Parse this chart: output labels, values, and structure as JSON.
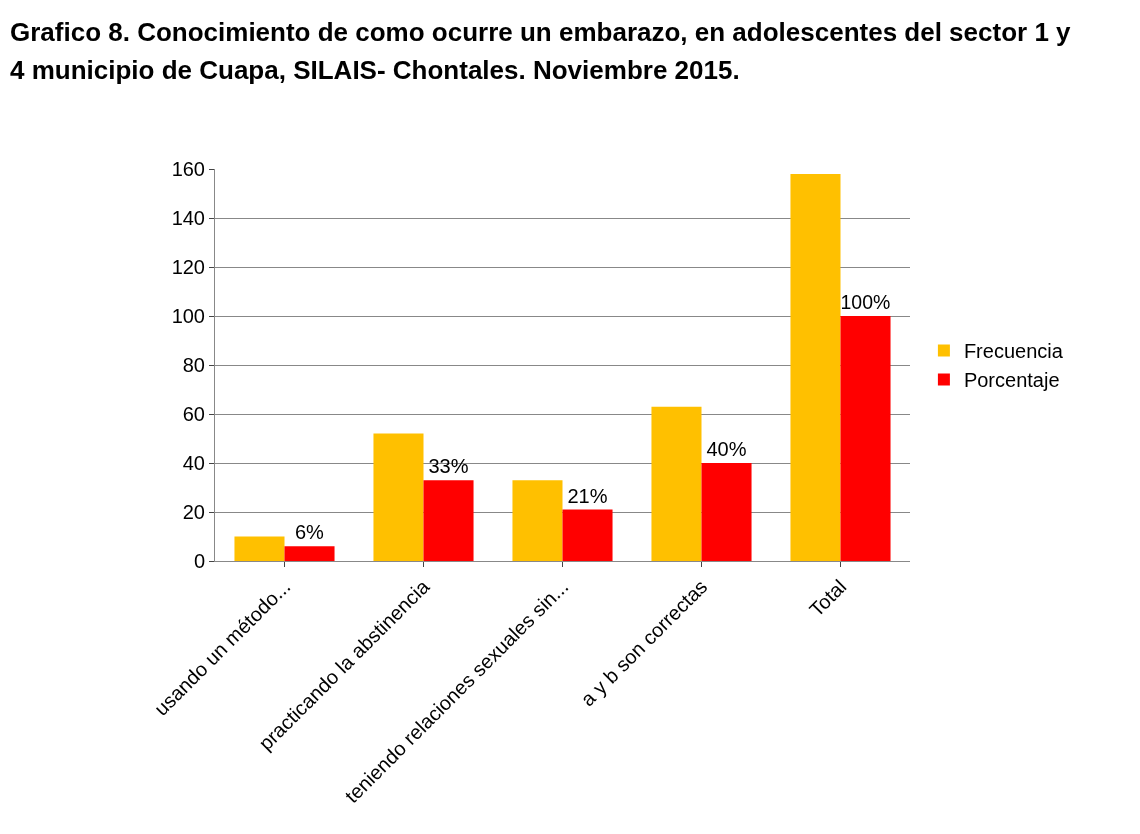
{
  "chart_data": {
    "type": "bar",
    "title": "Grafico 8.  Conocimiento de como ocurre un embarazo, en adolescentes  del sector 1 y 4 municipio de Cuapa, SILAIS- Chontales. Noviembre 2015.",
    "categories": [
      "usando un método...",
      "practicando la abstinencia",
      "teniendo relaciones sexuales sin...",
      "a y b son correctas",
      "Total"
    ],
    "series": [
      {
        "name": "Frecuencia",
        "color": "#ffc000",
        "values": [
          10,
          52,
          33,
          63,
          158
        ]
      },
      {
        "name": "Porcentaje",
        "color": "#ff0000",
        "values": [
          6,
          33,
          21,
          40,
          100
        ],
        "value_labels": [
          "6%",
          "33%",
          "21%",
          "40%",
          "100%"
        ]
      }
    ],
    "ylim": [
      0,
      160
    ],
    "yticks": [
      0,
      20,
      40,
      60,
      80,
      100,
      120,
      140,
      160
    ],
    "grid": "y",
    "legend": "right"
  }
}
